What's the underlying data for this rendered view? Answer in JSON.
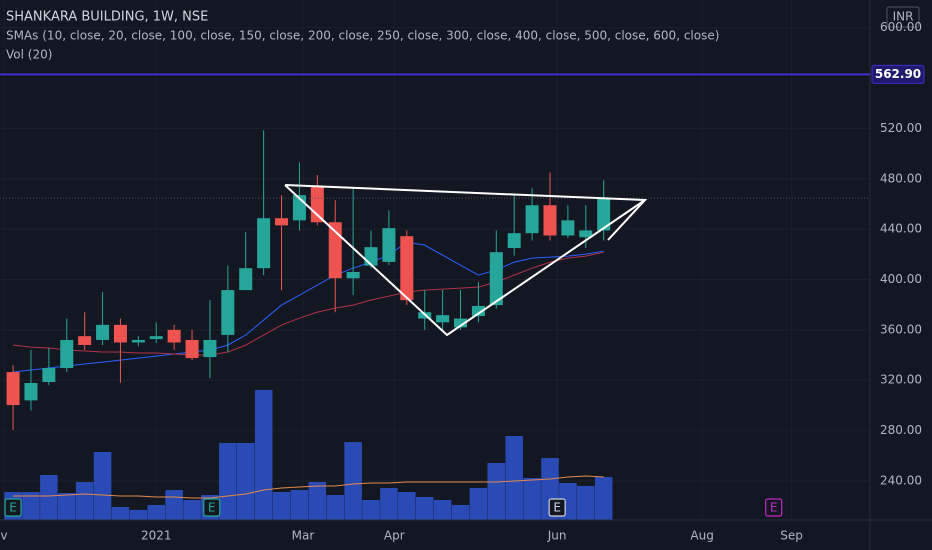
{
  "chart_data": {
    "type": "candlestick",
    "title": "SHANKARA BUILDING, 1W, NSE",
    "indicator_label": "SMAs (10, close, 20, close, 100, close, 150, close, 200, close, 250, close, 300, close, 400, close, 500, close, 600, close)",
    "volume_label": "Vol (20)",
    "currency": "INR",
    "x": [
      0,
      1,
      2,
      3,
      4,
      5,
      6,
      7,
      8,
      9,
      10,
      11,
      12,
      13,
      14,
      15,
      16,
      17,
      18,
      19,
      20,
      21,
      22,
      23,
      24,
      25,
      26,
      27,
      28,
      29,
      30,
      31,
      32,
      33
    ],
    "xlim": [
      -0.73,
      47.88
    ],
    "xticks": [
      {
        "value": -0.5,
        "label": "v"
      },
      {
        "value": 8,
        "label": "2021"
      },
      {
        "value": 16.2,
        "label": "Mar"
      },
      {
        "value": 21.3,
        "label": "Apr"
      },
      {
        "value": 30.4,
        "label": "Jun"
      },
      {
        "value": 38.5,
        "label": "Aug"
      },
      {
        "value": 43.5,
        "label": "Sep"
      }
    ],
    "open": [
      326.5,
      304,
      318.6,
      329.7,
      355,
      352,
      364,
      350,
      352.7,
      360,
      352,
      338.4,
      356,
      391.6,
      409,
      448.7,
      447,
      474,
      445.5,
      401,
      411,
      414,
      434.4,
      369,
      366,
      362,
      371,
      379.7,
      425,
      436.8,
      459,
      435,
      433.6,
      439
    ],
    "high": [
      332,
      344,
      345.6,
      369,
      374,
      390,
      369,
      355,
      366,
      364,
      360,
      383.7,
      411,
      437.6,
      518.6,
      467,
      493,
      483,
      463,
      472.5,
      439,
      455,
      439,
      391.6,
      391.6,
      391.6,
      398,
      439,
      467,
      472.5,
      485,
      459,
      459,
      479
    ],
    "low": [
      280.5,
      296,
      316,
      326.5,
      344,
      348,
      318,
      347,
      349.5,
      344,
      336,
      321.7,
      342,
      391.6,
      403.5,
      391.6,
      439,
      443,
      374,
      387.6,
      409,
      411.4,
      379.7,
      360,
      358,
      360,
      366,
      377,
      419,
      431,
      431,
      433,
      425,
      431
    ],
    "close": [
      300.3,
      317.8,
      329.7,
      352,
      348,
      364,
      350,
      352,
      355,
      350,
      337.6,
      352,
      391.6,
      409,
      448.7,
      443,
      467,
      445.5,
      401,
      406,
      425.7,
      440.8,
      383.6,
      374,
      371.7,
      369,
      379,
      421.7,
      436.8,
      459,
      435,
      447,
      439,
      464.6
    ],
    "up_color": "#26a69a",
    "down_color": "#ef5350",
    "ylim": [
      209,
      622
    ],
    "yticks": [
      {
        "value": 240,
        "label": "240.00"
      },
      {
        "value": 280,
        "label": "280.00"
      },
      {
        "value": 320,
        "label": "320.00"
      },
      {
        "value": 360,
        "label": "360.00"
      },
      {
        "value": 400,
        "label": "400.00"
      },
      {
        "value": 440,
        "label": "440.00"
      },
      {
        "value": 480,
        "label": "480.00"
      },
      {
        "value": 520,
        "label": "520.00"
      },
      {
        "value": 600,
        "label": "600.00"
      }
    ],
    "sma": [
      {
        "color": "#2962ff",
        "values": [
          326.5,
          328.1,
          329.7,
          331.3,
          332.9,
          334.4,
          336,
          337.6,
          339.2,
          340.8,
          342.4,
          344,
          347.9,
          355.9,
          367.8,
          379.7,
          387.6,
          395.6,
          403.5,
          409,
          413.8,
          419.4,
          429.7,
          427.3,
          419.4,
          411.4,
          403.5,
          407.5,
          413.8,
          417,
          417.8,
          418.6,
          420.2,
          422.5
        ]
      },
      {
        "color": "#b2324a",
        "values": [
          347.9,
          346.3,
          345.6,
          344,
          343.2,
          342.4,
          342.4,
          341.6,
          341.6,
          340.8,
          340,
          340,
          342.4,
          347.9,
          355.9,
          363.8,
          369.4,
          374.1,
          377.3,
          379.7,
          383.7,
          386.8,
          390,
          391.6,
          392.4,
          393.2,
          394,
          397.9,
          403.5,
          409,
          413.8,
          417,
          418.6,
          421.7
        ]
      }
    ],
    "hline": {
      "value": 562.9,
      "label": "562.90",
      "color": "#3d2fd0"
    },
    "volume": [
      28,
      28,
      45,
      27,
      38,
      68,
      13,
      10,
      15,
      30,
      20,
      25,
      77,
      77,
      130,
      28,
      30,
      38,
      25,
      78,
      20,
      32,
      28,
      23,
      20,
      15,
      32,
      57,
      84,
      42,
      62,
      37,
      34,
      43
    ],
    "volume_color": "#2a4bb5",
    "volume_sma": [
      24,
      24,
      24,
      25,
      26,
      25,
      24,
      24,
      23,
      23,
      22,
      22,
      24,
      26,
      30,
      32,
      33,
      34,
      34,
      36,
      37,
      37,
      38,
      38,
      38,
      38,
      38,
      38,
      39,
      40,
      41,
      43,
      44,
      43
    ],
    "volume_sma_color": "#e5894a",
    "vlim": [
      0,
      400
    ],
    "events": [
      {
        "x": 0,
        "label": "E",
        "color": "#26a69a"
      },
      {
        "x": 11.1,
        "label": "E",
        "color": "#26a69a"
      },
      {
        "x": 30.4,
        "label": "E",
        "color": "#d1d4dc"
      },
      {
        "x": 42.5,
        "label": "E",
        "color": "#c427c9"
      }
    ]
  }
}
